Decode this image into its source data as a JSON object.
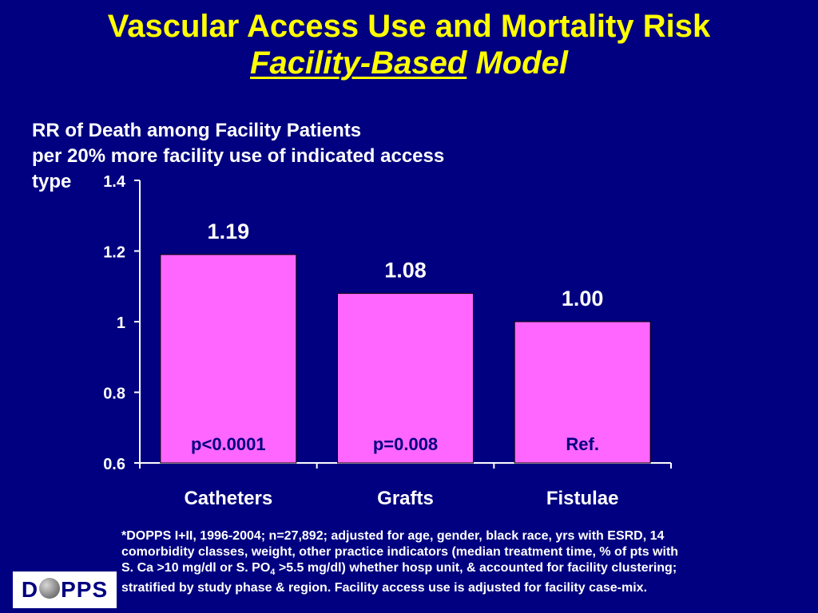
{
  "header": {
    "title_line1": "Vascular Access Use and Mortality Risk",
    "title_line2_underlined": "Facility-Based",
    "title_line2_rest": " Model"
  },
  "chart_data": {
    "type": "bar",
    "ylabel_lines": [
      "RR of Death among Facility Patients",
      "per 20% more facility use of indicated access",
      "type"
    ],
    "categories": [
      "Catheters",
      "Grafts",
      "Fistulae"
    ],
    "values": [
      1.19,
      1.08,
      1.0
    ],
    "value_labels": [
      "1.19",
      "1.08",
      "1.00"
    ],
    "p_values": [
      "p<0.0001",
      "p=0.008",
      "Ref."
    ],
    "ylim": [
      0.6,
      1.4
    ],
    "yticks": [
      {
        "value": 0.6,
        "label": "0.6"
      },
      {
        "value": 0.8,
        "label": "0.8"
      },
      {
        "value": 1.0,
        "label": "1"
      },
      {
        "value": 1.2,
        "label": "1.2"
      },
      {
        "value": 1.4,
        "label": "1.4"
      }
    ],
    "bar_color": "#FF66FF",
    "grid": false
  },
  "footnote": {
    "line1": "*DOPPS I+II, 1996-2004; n=27,892; adjusted for age, gender, black race, yrs with ESRD, 14",
    "line2": "comorbidity classes, weight, other practice indicators (median treatment time, % of pts with",
    "line3_a": "S. Ca >10 mg/dl or S. PO",
    "line3_sub": "4",
    "line3_b": " >5.5 mg/dl) whether hosp unit, & accounted for facility clustering;",
    "line4": "stratified by study phase & region.  Facility access use is adjusted for facility case-mix."
  },
  "logo": {
    "left": "D",
    "right": "PPS"
  },
  "colors": {
    "background": "#000080",
    "title": "#FFFF00",
    "text": "#FFFFFF",
    "bars": "#FF66FF"
  }
}
